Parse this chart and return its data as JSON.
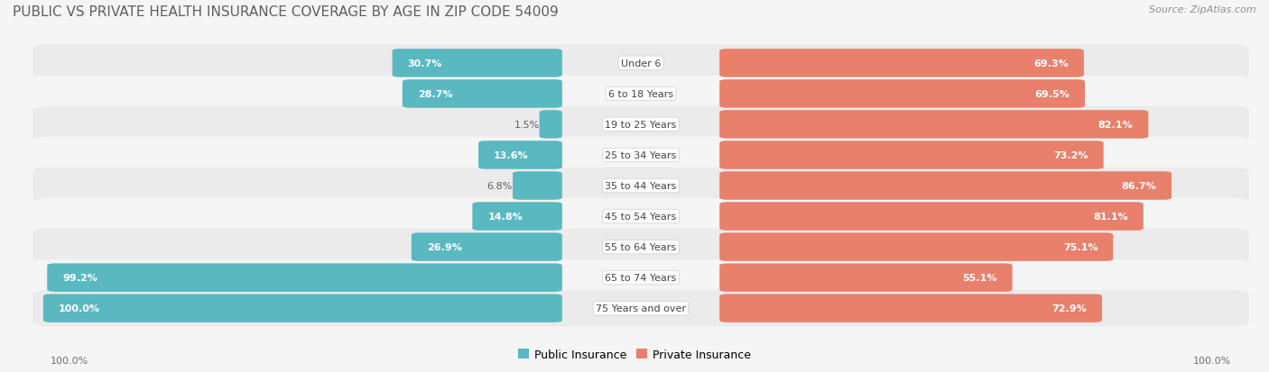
{
  "title": "PUBLIC VS PRIVATE HEALTH INSURANCE COVERAGE BY AGE IN ZIP CODE 54009",
  "source": "Source: ZipAtlas.com",
  "categories": [
    "Under 6",
    "6 to 18 Years",
    "19 to 25 Years",
    "25 to 34 Years",
    "35 to 44 Years",
    "45 to 54 Years",
    "55 to 64 Years",
    "65 to 74 Years",
    "75 Years and over"
  ],
  "public_values": [
    30.7,
    28.7,
    1.5,
    13.6,
    6.8,
    14.8,
    26.9,
    99.2,
    100.0
  ],
  "private_values": [
    69.3,
    69.5,
    82.1,
    73.2,
    86.7,
    81.1,
    75.1,
    55.1,
    72.9
  ],
  "public_color": "#5ab8c1",
  "private_color": "#e8806c",
  "row_bg_even": "#ebebeb",
  "row_bg_odd": "#f5f5f5",
  "fig_bg": "#f5f5f5",
  "title_color": "#606060",
  "source_color": "#909090",
  "value_color_inside": "#ffffff",
  "value_color_outside": "#606060",
  "label_color": "#444444",
  "axis_label_color": "#707070",
  "title_fontsize": 11,
  "source_fontsize": 8,
  "bar_fontsize": 8,
  "cat_fontsize": 8,
  "legend_fontsize": 9,
  "axis_fontsize": 8
}
